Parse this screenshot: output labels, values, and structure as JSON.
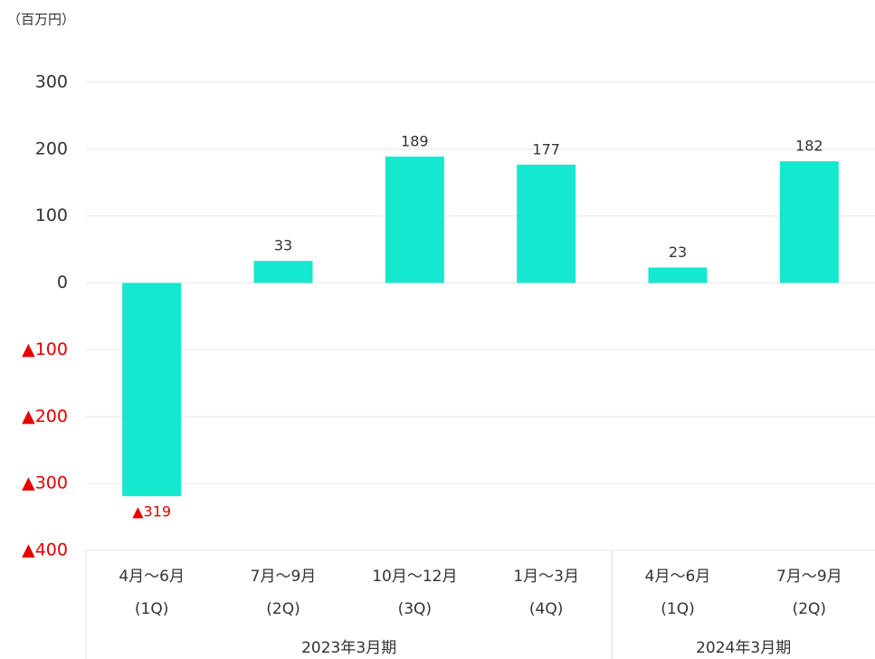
{
  "chart_data": {
    "type": "bar",
    "unit_label": "（百万円）",
    "groups": [
      {
        "label": "2023年3月期",
        "categories": [
          [
            "4月〜6月",
            "(1Q)"
          ],
          [
            "7月〜9月",
            "(2Q)"
          ],
          [
            "10月〜12月",
            "(3Q)"
          ],
          [
            "1月〜3月",
            "(4Q)"
          ]
        ]
      },
      {
        "label": "2024年3月期",
        "categories": [
          [
            "4月〜6月",
            "(1Q)"
          ],
          [
            "7月〜9月",
            "(2Q)"
          ]
        ]
      }
    ],
    "values": [
      -319,
      33,
      189,
      177,
      23,
      182
    ],
    "value_labels": [
      "▲319",
      "33",
      "189",
      "177",
      "23",
      "182"
    ],
    "color": "#14e8cf",
    "negative_label_color": "#e60000",
    "ylim": [
      -400,
      300
    ],
    "yticks": [
      300,
      200,
      100,
      0,
      {
        "value": -100,
        "label": "▲100"
      },
      {
        "value": -200,
        "label": "▲200"
      },
      {
        "value": -300,
        "label": "▲300"
      },
      {
        "value": -400,
        "label": "▲400"
      }
    ],
    "grid": true
  }
}
